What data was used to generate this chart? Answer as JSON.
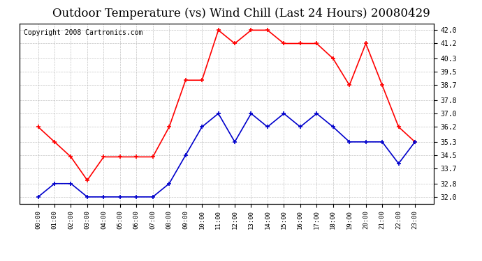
{
  "title": "Outdoor Temperature (vs) Wind Chill (Last 24 Hours) 20080429",
  "copyright": "Copyright 2008 Cartronics.com",
  "hours": [
    "00:00",
    "01:00",
    "02:00",
    "03:00",
    "04:00",
    "05:00",
    "06:00",
    "07:00",
    "08:00",
    "09:00",
    "10:00",
    "11:00",
    "12:00",
    "13:00",
    "14:00",
    "15:00",
    "16:00",
    "17:00",
    "18:00",
    "19:00",
    "20:00",
    "21:00",
    "22:00",
    "23:00"
  ],
  "temp": [
    36.2,
    35.3,
    34.4,
    33.0,
    34.4,
    34.4,
    34.4,
    34.4,
    36.2,
    39.0,
    39.0,
    42.0,
    41.2,
    42.0,
    42.0,
    41.2,
    41.2,
    41.2,
    40.3,
    38.7,
    41.2,
    38.7,
    36.2,
    35.3
  ],
  "wind_chill": [
    32.0,
    32.8,
    32.8,
    32.0,
    32.0,
    32.0,
    32.0,
    32.0,
    32.8,
    34.5,
    36.2,
    37.0,
    35.3,
    37.0,
    36.2,
    37.0,
    36.2,
    37.0,
    36.2,
    35.3,
    35.3,
    35.3,
    34.0,
    35.3
  ],
  "temp_color": "#ff0000",
  "wind_chill_color": "#0000cc",
  "bg_color": "#ffffff",
  "plot_bg_color": "#ffffff",
  "grid_color": "#aaaaaa",
  "yticks": [
    32.0,
    32.8,
    33.7,
    34.5,
    35.3,
    36.2,
    37.0,
    37.8,
    38.7,
    39.5,
    40.3,
    41.2,
    42.0
  ],
  "ylim": [
    31.6,
    42.4
  ],
  "title_fontsize": 12,
  "copyright_fontsize": 7
}
